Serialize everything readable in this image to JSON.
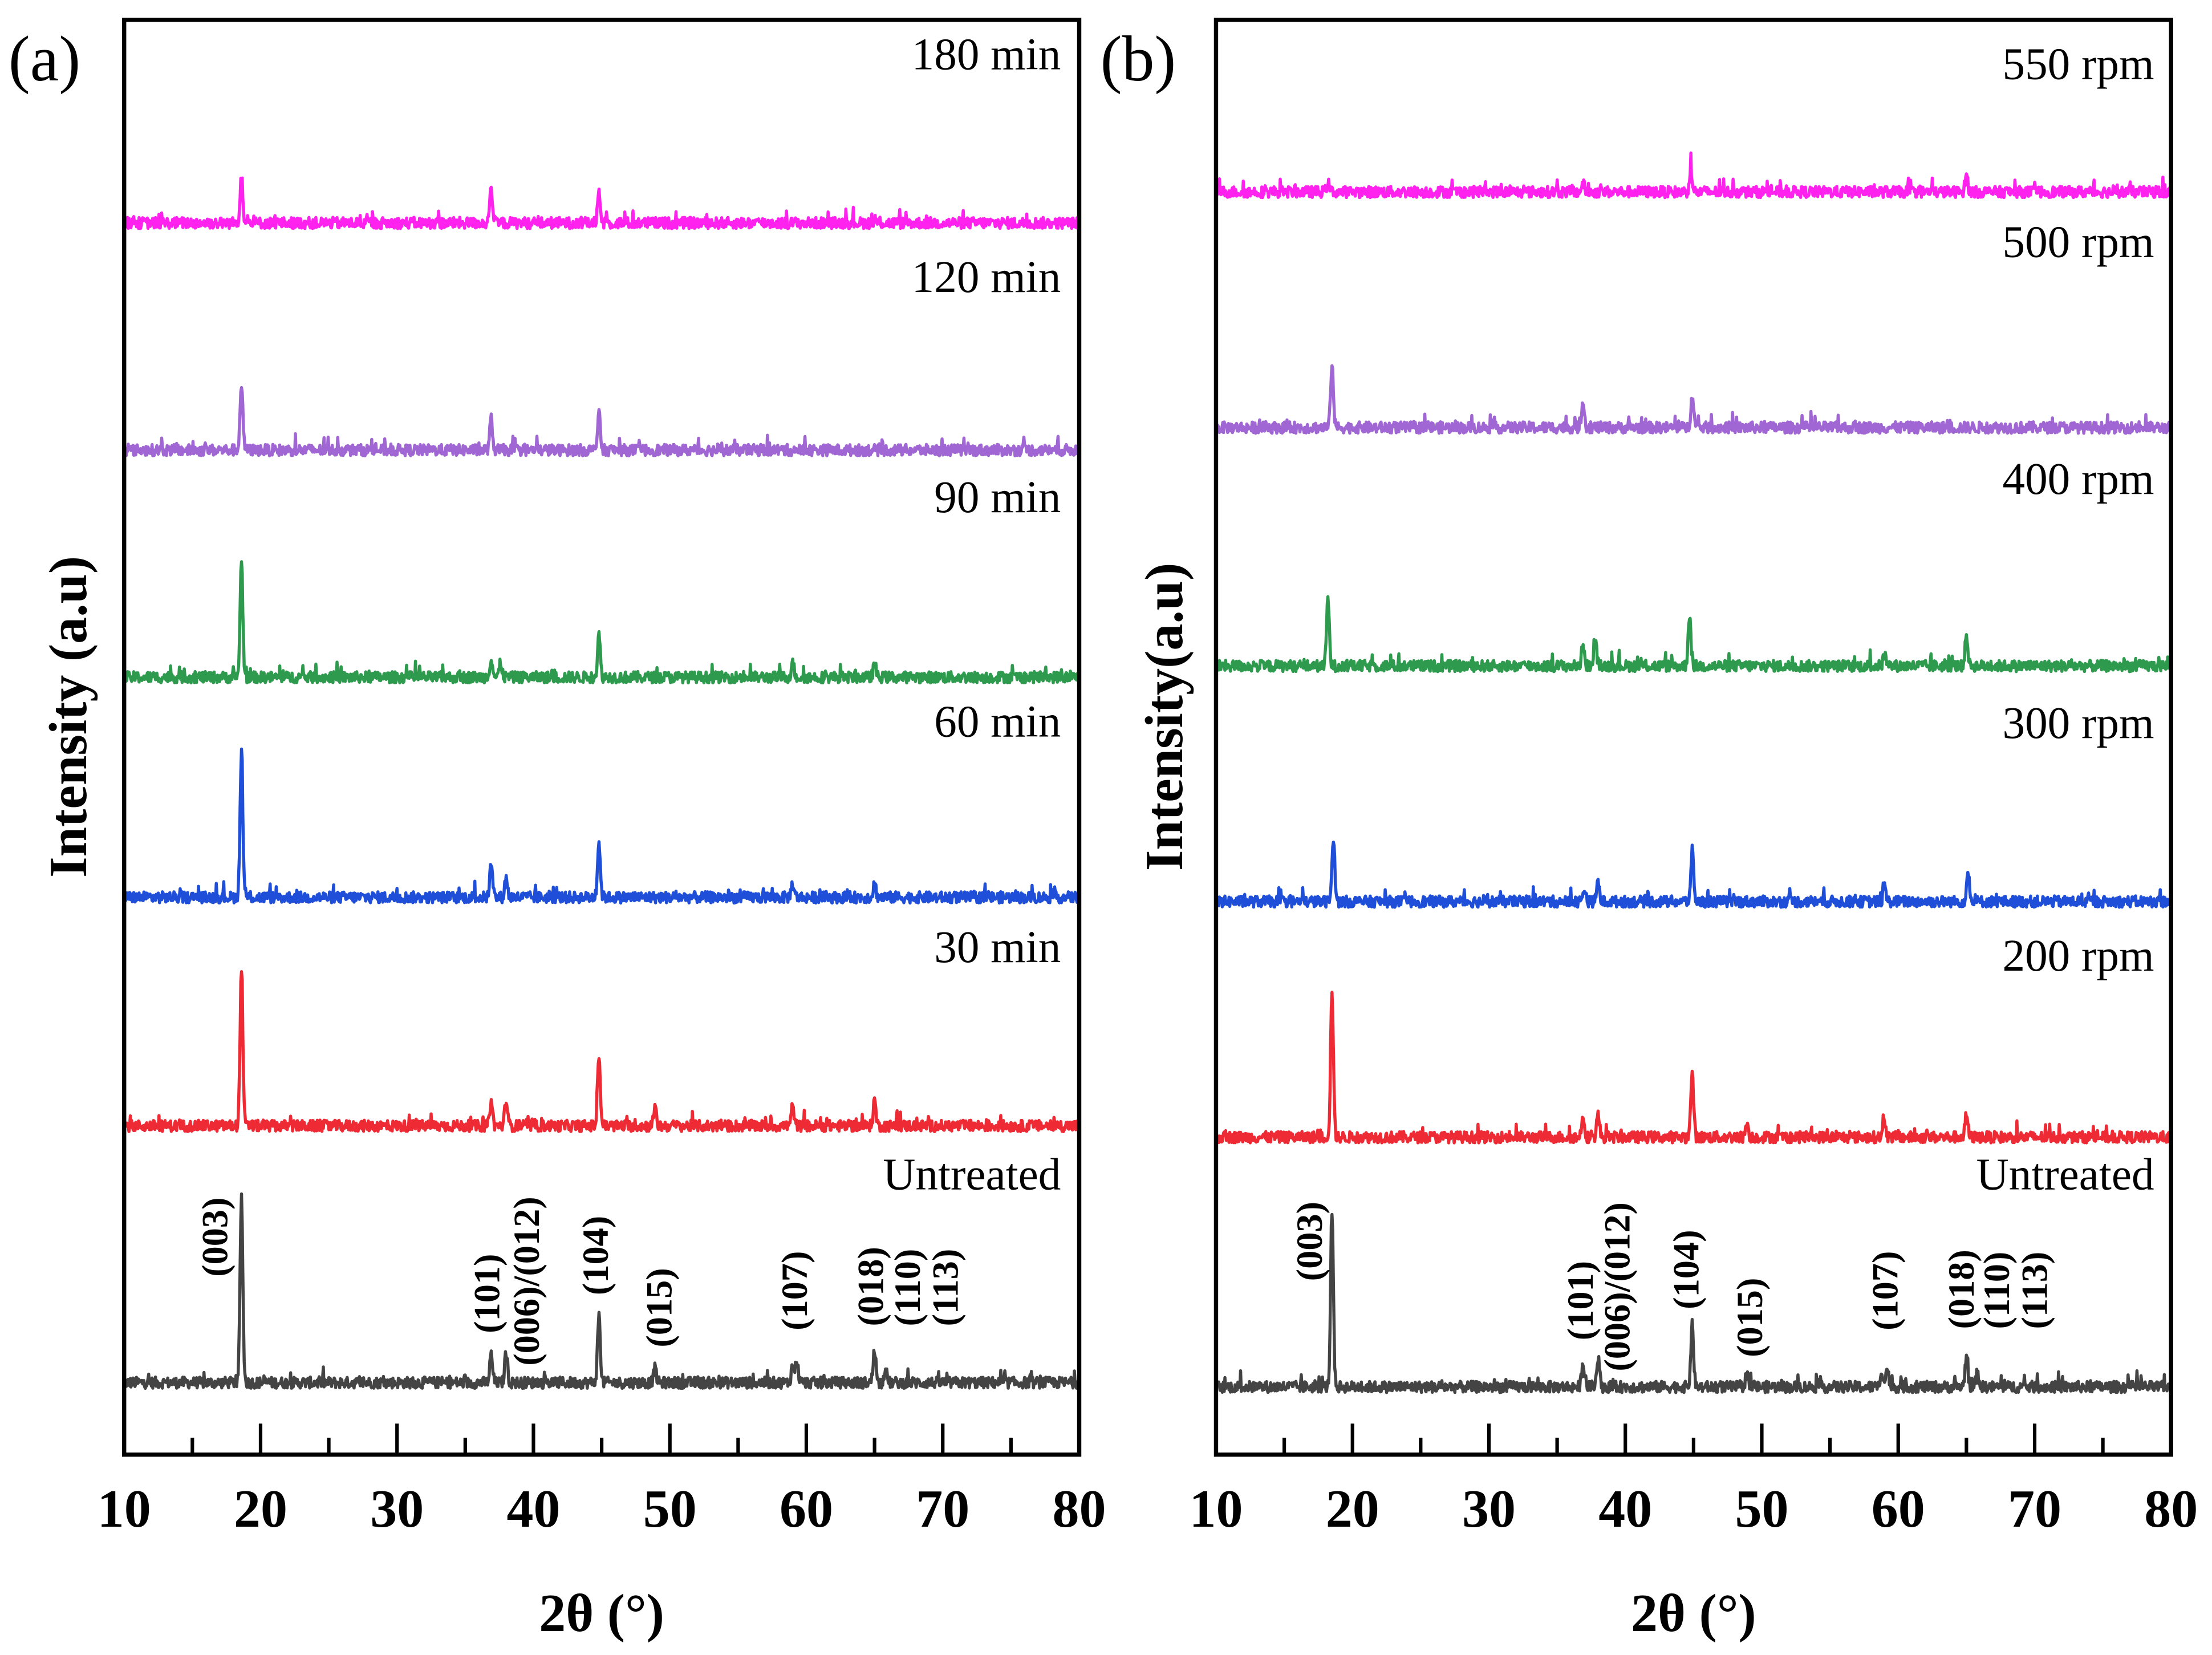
{
  "chart_data": [
    {
      "type": "line",
      "panel_label": "(a)",
      "xlabel": "2θ (°)",
      "ylabel": "Intensity (a.u)",
      "xlim": [
        10,
        80
      ],
      "xticks": [
        "10",
        "20",
        "30",
        "40",
        "50",
        "60",
        "70",
        "80"
      ],
      "y_ticks_shown": false,
      "grid": false,
      "legend": "text labels above each stacked trace, right-aligned",
      "series": [
        {
          "name": "Untreated",
          "color": "#444444",
          "offset": 51,
          "peaks": [
            [
              18.6,
              132
            ],
            [
              36.9,
              20
            ],
            [
              38.0,
              22
            ],
            [
              44.8,
              48
            ],
            [
              48.9,
              10
            ],
            [
              59.0,
              12
            ],
            [
              59.3,
              16
            ],
            [
              65.0,
              24
            ],
            [
              65.8,
              10
            ]
          ]
        },
        {
          "name": "30 min",
          "color": "#ee2a35",
          "offset": 233,
          "peaks": [
            [
              18.6,
              113
            ],
            [
              36.9,
              18
            ],
            [
              38.0,
              18
            ],
            [
              44.8,
              50
            ],
            [
              48.9,
              12
            ],
            [
              59.0,
              14
            ],
            [
              65.0,
              18
            ]
          ]
        },
        {
          "name": "60 min",
          "color": "#1f4fd8",
          "offset": 395,
          "peaks": [
            [
              18.6,
              103
            ],
            [
              36.9,
              24
            ],
            [
              38.0,
              14
            ],
            [
              44.8,
              40
            ],
            [
              59.0,
              10
            ],
            [
              65.0,
              10
            ]
          ]
        },
        {
          "name": "90 min",
          "color": "#2e9a4e",
          "offset": 551,
          "peaks": [
            [
              18.6,
              82
            ],
            [
              36.9,
              14
            ],
            [
              37.6,
              10
            ],
            [
              44.8,
              30
            ],
            [
              59.0,
              10
            ],
            [
              65.0,
              10
            ]
          ]
        },
        {
          "name": "120 min",
          "color": "#a066d3",
          "offset": 712,
          "peaks": [
            [
              18.6,
              47
            ],
            [
              36.9,
              22
            ],
            [
              44.8,
              26
            ]
          ]
        },
        {
          "name": "180 min",
          "color": "#ff22ee",
          "offset": 873,
          "peaks": [
            [
              18.6,
              35
            ],
            [
              36.9,
              26
            ],
            [
              44.8,
              20
            ]
          ]
        }
      ],
      "annotations": [
        "(003)",
        "(101)",
        "(006)/(012)",
        "(104)",
        "(015)",
        "(107)",
        "(018)",
        "(110)",
        "(113)"
      ]
    },
    {
      "type": "line",
      "panel_label": "(b)",
      "xlabel": "2θ (°)",
      "ylabel": "Intensity(a.u)",
      "xlim": [
        10,
        80
      ],
      "xticks": [
        "10",
        "20",
        "30",
        "40",
        "50",
        "60",
        "70",
        "80"
      ],
      "y_ticks_shown": false,
      "grid": false,
      "legend": "text labels above each stacked trace, right-aligned",
      "series": [
        {
          "name": "Untreated",
          "color": "#444444",
          "offset": 48,
          "peaks": [
            [
              18.5,
              126
            ],
            [
              36.9,
              18
            ],
            [
              38.0,
              22
            ],
            [
              44.9,
              44
            ],
            [
              48.9,
              10
            ],
            [
              58.8,
              12
            ],
            [
              59.2,
              14
            ],
            [
              65.0,
              22
            ],
            [
              65.8,
              10
            ]
          ]
        },
        {
          "name": "200 rpm",
          "color": "#ee2a35",
          "offset": 225,
          "peaks": [
            [
              18.5,
              104
            ],
            [
              36.9,
              16
            ],
            [
              38.0,
              16
            ],
            [
              44.9,
              46
            ],
            [
              48.9,
              10
            ],
            [
              59.0,
              12
            ],
            [
              65.0,
              16
            ]
          ]
        },
        {
          "name": "300 rpm",
          "color": "#1f4fd8",
          "offset": 392,
          "peaks": [
            [
              18.6,
              46
            ],
            [
              37.0,
              10
            ],
            [
              38.0,
              14
            ],
            [
              44.9,
              36
            ],
            [
              59.0,
              10
            ],
            [
              65.1,
              20
            ]
          ]
        },
        {
          "name": "400 rpm",
          "color": "#2e9a4e",
          "offset": 559,
          "peaks": [
            [
              18.2,
              47
            ],
            [
              36.9,
              16
            ],
            [
              37.8,
              18
            ],
            [
              44.7,
              36
            ],
            [
              59.0,
              8
            ],
            [
              65.0,
              22
            ]
          ]
        },
        {
          "name": "500 rpm",
          "color": "#a066d3",
          "offset": 728,
          "peaks": [
            [
              18.5,
              45
            ],
            [
              36.9,
              20
            ],
            [
              44.9,
              24
            ]
          ]
        },
        {
          "name": "550 rpm",
          "color": "#ff22ee",
          "offset": 895,
          "peaks": [
            [
              18.2,
              6
            ],
            [
              36.9,
              6
            ],
            [
              44.8,
              16
            ],
            [
              65.0,
              12
            ]
          ]
        }
      ],
      "annotations": [
        "(003)",
        "(101)",
        "(006)/(012)",
        "(104)",
        "(015)",
        "(107)",
        "(018)",
        "(110)",
        "(113)"
      ]
    }
  ]
}
